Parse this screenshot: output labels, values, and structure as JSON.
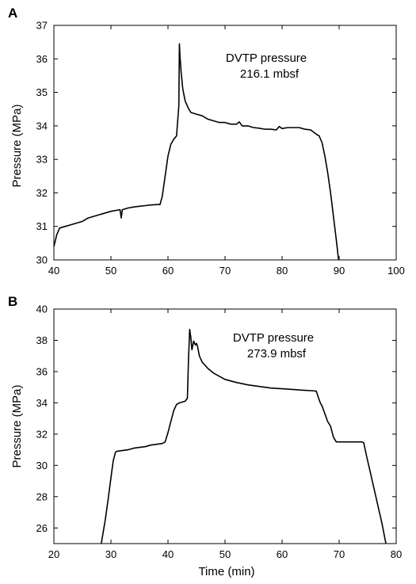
{
  "chart_data": [
    {
      "panel_label": "A",
      "type": "line",
      "xlabel": "",
      "ylabel": "Pressure (MPa)",
      "xlim": [
        40,
        100
      ],
      "ylim": [
        30,
        37
      ],
      "xticks": [
        40,
        50,
        60,
        70,
        80,
        90,
        100
      ],
      "yticks": [
        30,
        31,
        32,
        33,
        34,
        35,
        36,
        37
      ],
      "annotation": [
        "DVTP pressure",
        "216.1 mbsf"
      ],
      "grid": false,
      "line_color": "#000000",
      "series": [
        {
          "x": [
            40,
            40.5,
            41,
            42,
            43,
            44,
            45,
            46,
            47,
            48,
            49,
            50,
            51,
            51.6,
            51.8,
            52,
            53,
            54,
            55,
            56,
            57,
            58,
            58.6,
            59,
            59.5,
            60,
            60.5,
            61,
            61.5,
            61.9,
            62.0,
            62.1,
            62.3,
            62.6,
            63,
            63.5,
            64,
            65,
            66,
            67,
            68,
            69,
            70,
            71,
            72,
            72.5,
            73,
            74,
            75,
            76,
            77,
            78,
            79,
            79.5,
            80,
            81,
            82,
            83,
            84,
            85,
            86,
            86.5,
            87,
            87.5,
            88,
            88.5,
            89,
            89.5,
            89.9
          ],
          "y": [
            30.4,
            30.75,
            30.95,
            31.0,
            31.05,
            31.1,
            31.15,
            31.25,
            31.3,
            31.35,
            31.4,
            31.45,
            31.48,
            31.5,
            31.25,
            31.5,
            31.55,
            31.58,
            31.6,
            31.62,
            31.64,
            31.65,
            31.65,
            31.9,
            32.5,
            33.1,
            33.45,
            33.6,
            33.7,
            34.6,
            36.45,
            36.1,
            35.6,
            35.1,
            34.75,
            34.55,
            34.4,
            34.35,
            34.3,
            34.2,
            34.15,
            34.1,
            34.1,
            34.05,
            34.05,
            34.12,
            34.0,
            34.0,
            33.95,
            33.93,
            33.9,
            33.9,
            33.88,
            33.98,
            33.92,
            33.95,
            33.95,
            33.95,
            33.9,
            33.88,
            33.75,
            33.7,
            33.5,
            33.1,
            32.6,
            32.0,
            31.3,
            30.6,
            30.0
          ]
        }
      ]
    },
    {
      "panel_label": "B",
      "type": "line",
      "xlabel": "Time (min)",
      "ylabel": "Pressure (MPa)",
      "xlim": [
        20,
        80
      ],
      "ylim": [
        25,
        40
      ],
      "xticks": [
        20,
        30,
        40,
        50,
        60,
        70,
        80
      ],
      "yticks": [
        26,
        28,
        30,
        32,
        34,
        36,
        38,
        40
      ],
      "annotation": [
        "DVTP pressure",
        "273.9 mbsf"
      ],
      "grid": false,
      "line_color": "#000000",
      "series": [
        {
          "x": [
            28.3,
            29,
            29.5,
            30,
            30.4,
            30.8,
            31,
            32,
            33,
            34,
            35,
            36,
            37,
            38,
            39,
            39.5,
            40,
            40.5,
            41,
            41.5,
            42,
            42.5,
            43,
            43.4,
            43.6,
            43.8,
            44.0,
            44.2,
            44.5,
            44.8,
            45.0,
            45.2,
            45.5,
            46,
            47,
            48,
            50,
            52,
            54,
            56,
            58,
            60,
            62,
            64,
            65,
            66,
            66.3,
            66.7,
            67,
            67.5,
            68,
            68.5,
            69,
            69.5,
            70,
            71,
            72,
            73,
            74,
            74.3,
            74.8,
            75.5,
            76.5,
            77.5,
            78.2
          ],
          "y": [
            25,
            26.5,
            27.8,
            29.2,
            30.3,
            30.85,
            30.9,
            30.95,
            31.0,
            31.1,
            31.15,
            31.2,
            31.3,
            31.35,
            31.4,
            31.5,
            32.1,
            32.8,
            33.5,
            33.9,
            34.0,
            34.05,
            34.1,
            34.3,
            36.8,
            38.7,
            38.2,
            37.4,
            37.95,
            37.7,
            37.8,
            37.6,
            37.0,
            36.6,
            36.2,
            35.9,
            35.5,
            35.3,
            35.15,
            35.05,
            34.95,
            34.9,
            34.85,
            34.8,
            34.78,
            34.75,
            34.4,
            34.0,
            33.8,
            33.3,
            32.8,
            32.5,
            31.8,
            31.5,
            31.5,
            31.5,
            31.5,
            31.5,
            31.5,
            31.45,
            30.6,
            29.5,
            27.9,
            26.3,
            25
          ]
        }
      ]
    }
  ]
}
